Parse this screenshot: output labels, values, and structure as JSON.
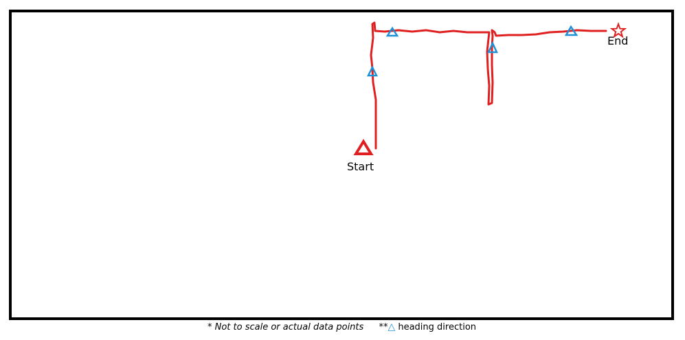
{
  "labels": {
    "start": "Start",
    "end": "End"
  },
  "footnote": {
    "disclaimer": "* Not to scale or actual data points",
    "legend_prefix": "**",
    "legend_symbol": "△",
    "legend_text": " heading direction"
  },
  "colors": {
    "path": "#e02020",
    "heading_marker": "#1e90d6",
    "frame": "#000000"
  },
  "icons": {
    "start": "red-triangle-icon",
    "end": "red-star-icon",
    "heading": "blue-triangle-icon"
  }
}
